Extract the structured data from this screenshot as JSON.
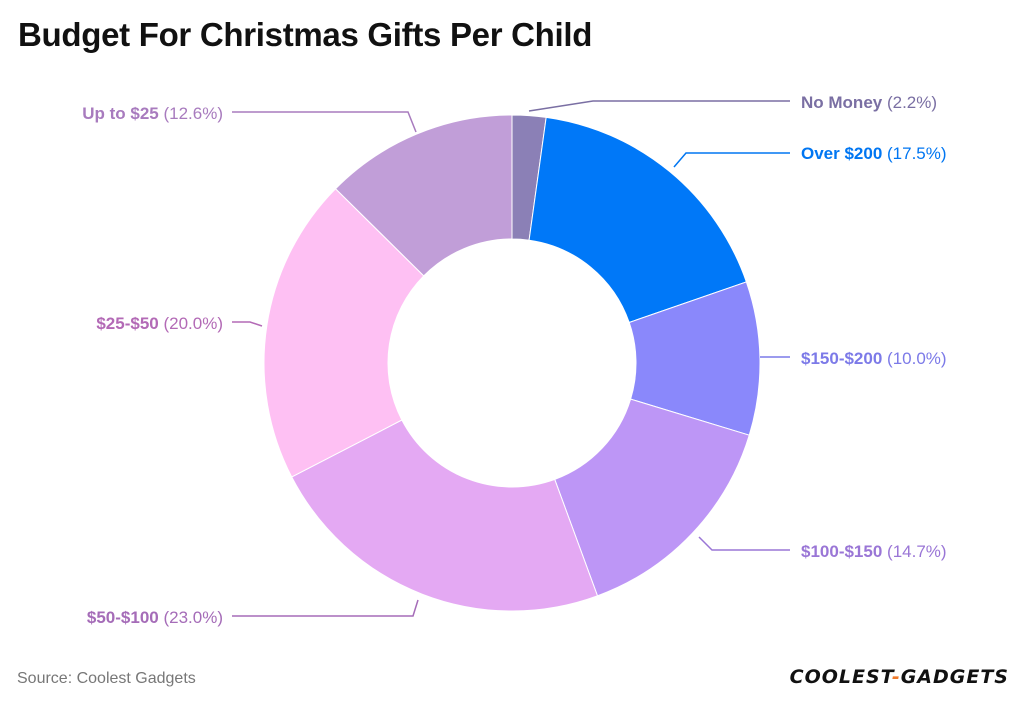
{
  "chart_data": {
    "type": "pie",
    "variant": "donut",
    "title": "Budget For Christmas Gifts Per Child",
    "unit": "%",
    "slices": [
      {
        "label": "No Money",
        "value": 2.2,
        "color": "#8b80b6"
      },
      {
        "label": "Over $200",
        "value": 17.5,
        "color": "#0078f8"
      },
      {
        "label": "$150-$200",
        "value": 10.0,
        "color": "#8a88fb"
      },
      {
        "label": "$100-$150",
        "value": 14.7,
        "color": "#bd96f6"
      },
      {
        "label": "$50-$100",
        "value": 23.0,
        "color": "#e4a9f3"
      },
      {
        "label": "$25-$50",
        "value": 20.0,
        "color": "#fec0f3"
      },
      {
        "label": "Up to $25",
        "value": 12.6,
        "color": "#c19ed8"
      }
    ],
    "label_colors": {
      "No Money": "#7a6fa3",
      "Over $200": "#0076f2",
      "$150-$200": "#7c7ae8",
      "$100-$150": "#9a76d6",
      "$50-$100": "#a56cb8",
      "$25-$50": "#b36ab6",
      "Up to $25": "#a87bbe"
    }
  },
  "source": "Source: Coolest Gadgets",
  "logo": {
    "part1": "COOLEST",
    "dash": "-",
    "part2": "GADGETS"
  }
}
